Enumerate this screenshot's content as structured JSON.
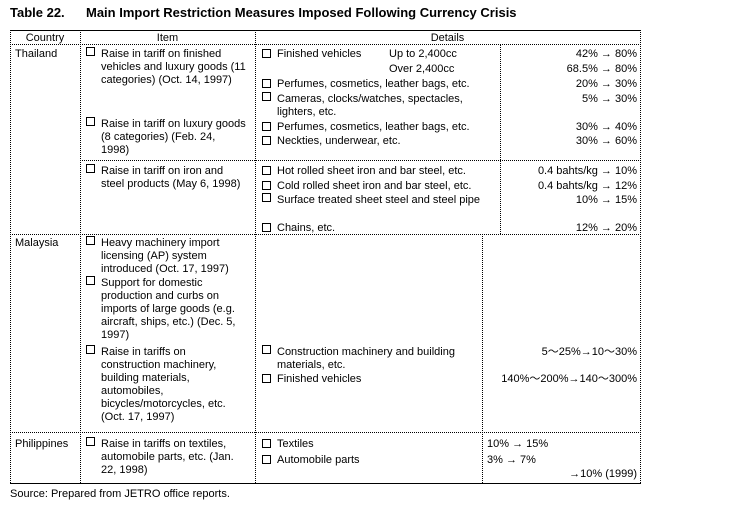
{
  "title": {
    "number": "Table 22.",
    "text": "Main Import Restriction Measures Imposed Following Currency Crisis"
  },
  "headers": {
    "country": "Country",
    "item": "Item",
    "details": "Details"
  },
  "thailand": {
    "country": "Thailand",
    "items": [
      "Raise in tariff on finished vehicles and luxury goods (11 categories) (Oct. 14, 1997)",
      "Raise in tariff on luxury goods (8 categories) (Feb. 24, 1998)",
      "Raise in tariff on iron and steel products (May 6, 1998)"
    ],
    "details": {
      "finished_vehicles": "Finished vehicles",
      "up_to": "Up to 2,400cc",
      "over": "Over 2,400cc",
      "perfumes1": "Perfumes, cosmetics, leather bags, etc.",
      "cameras": "Cameras, clocks/watches, spectacles, lighters, etc.",
      "perfumes2": "Perfumes, cosmetics, leather bags, etc.",
      "neckties": "Neckties, underwear, etc.",
      "hot_rolled": "Hot rolled sheet iron and bar steel, etc.",
      "cold_rolled": "Cold rolled sheet iron and bar steel, etc.",
      "surface": "Surface treated sheet steel and steel pipe",
      "chains": "Chains, etc."
    },
    "values": {
      "v1": "42% → 80%",
      "v2": "68.5% → 80%",
      "v3": "20% → 30%",
      "v4": "5% → 30%",
      "v5": "30% → 40%",
      "v6": "30% → 60%",
      "v7": "0.4 bahts/kg → 10%",
      "v8": "0.4 bahts/kg → 12%",
      "v9": "10% → 15%",
      "v10": "12% → 20%"
    }
  },
  "malaysia": {
    "country": "Malaysia",
    "items": [
      "Heavy machinery import licensing (AP) system introduced (Oct. 17, 1997)",
      "Support for domestic production and curbs on imports of large goods (e.g. aircraft, ships, etc.) (Dec. 5, 1997)",
      "Raise in tariffs on construction machinery, building materials, automobiles, bicycles/motorcycles, etc. (Oct. 17, 1997)"
    ],
    "details": {
      "construction": "Construction machinery and building materials, etc.",
      "finished_vehicles": "Finished vehicles"
    },
    "values": {
      "v1": "5～25%→10～30%",
      "v2": "140%～200%→140～300%"
    }
  },
  "philippines": {
    "country": "Philippines",
    "items": [
      "Raise in tariffs on textiles, automobile parts, etc. (Jan. 22, 1998)"
    ],
    "details": {
      "textiles": "Textiles",
      "auto_parts": "Automobile parts"
    },
    "values": {
      "v1": "10% → 15%",
      "v2": "3% → 7%",
      "v3": "→10% (1999)"
    }
  },
  "source": "Source:  Prepared from JETRO office reports."
}
